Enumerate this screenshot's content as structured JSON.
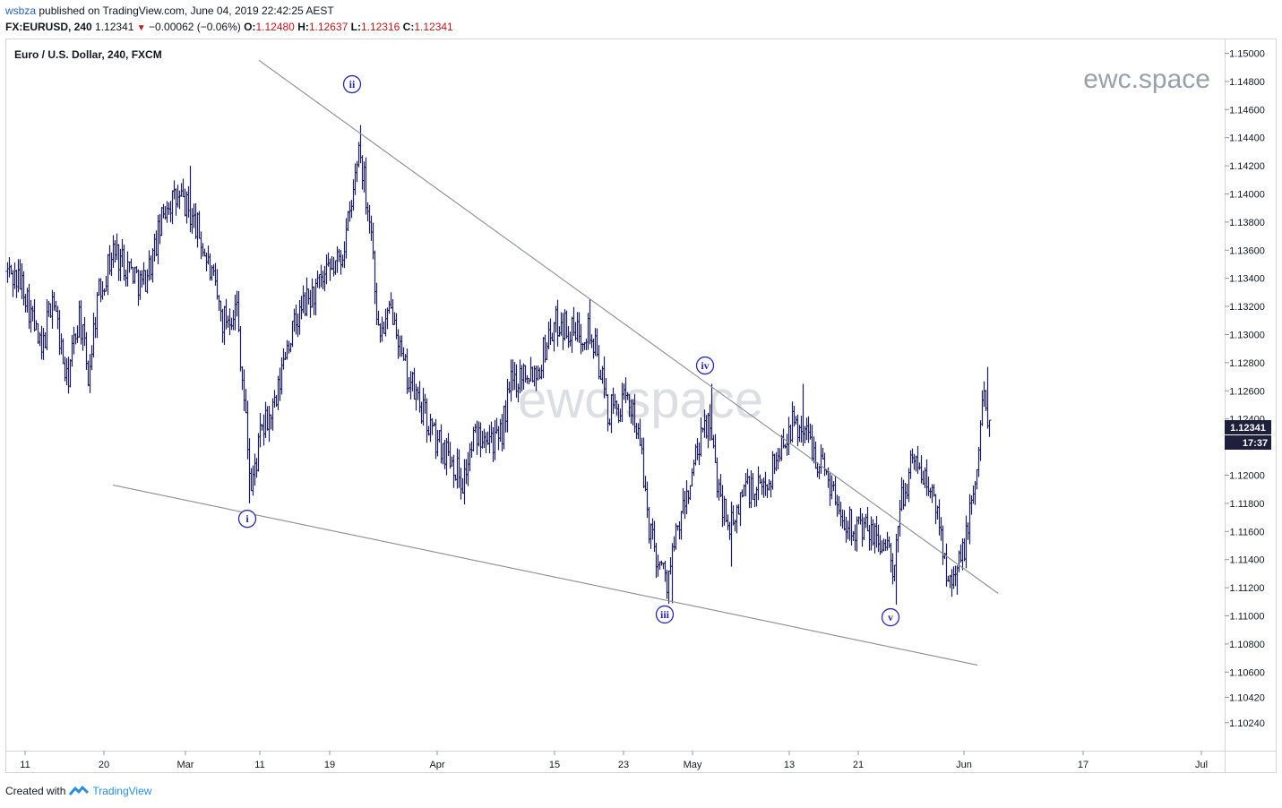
{
  "header": {
    "user": "wsbza",
    "published_text": "published on TradingView.com, June 04, 2019 22:42:25 AEST",
    "symbol": "FX:EURUSD, 240",
    "last": "1.12341",
    "change": "−0.00062 (−0.06%)",
    "o_label": "O:",
    "o_value": "1.12480",
    "h_label": "H:",
    "h_value": "1.12637",
    "l_label": "L:",
    "l_value": "1.12316",
    "c_label": "C:",
    "c_value": "1.12341"
  },
  "footer": {
    "created_with": "Created with",
    "brand": "TradingView"
  },
  "chart_data": {
    "type": "ohlc",
    "title": "Euro / U.S. Dollar, 240, FXCM",
    "watermark_corner": "ewc.space",
    "watermark_center": "ewc.space",
    "current_price_label": "1.12341",
    "countdown_label": "17:37",
    "y_ticks": [
      "1.15000",
      "1.14800",
      "1.14600",
      "1.14400",
      "1.14200",
      "1.14000",
      "1.13800",
      "1.13600",
      "1.13400",
      "1.13200",
      "1.13000",
      "1.12800",
      "1.12600",
      "1.12400",
      "1.12000",
      "1.11800",
      "1.11600",
      "1.11400",
      "1.11200",
      "1.11000",
      "1.10800",
      "1.10600",
      "1.10420",
      "1.10240"
    ],
    "y_range": [
      1.101,
      1.151
    ],
    "x_ticks": [
      {
        "label": "11",
        "bar": 20
      },
      {
        "label": "20",
        "bar": 108
      },
      {
        "label": "Mar",
        "bar": 199
      },
      {
        "label": "11",
        "bar": 282
      },
      {
        "label": "19",
        "bar": 360
      },
      {
        "label": "Apr",
        "bar": 480
      },
      {
        "label": "15",
        "bar": 611
      },
      {
        "label": "23",
        "bar": 688
      },
      {
        "label": "May",
        "bar": 765
      },
      {
        "label": "13",
        "bar": 873
      },
      {
        "label": "21",
        "bar": 950
      },
      {
        "label": "Jun",
        "bar": 1068
      },
      {
        "label": "17",
        "bar": 1201
      },
      {
        "label": "Jul",
        "bar": 1333
      }
    ],
    "wave_labels": [
      {
        "label": "i",
        "bar": 268,
        "price": 1.1169
      },
      {
        "label": "ii",
        "bar": 385,
        "price": 1.1478
      },
      {
        "label": "iii",
        "bar": 734,
        "price": 1.1101
      },
      {
        "label": "iv",
        "bar": 779,
        "price": 1.1278
      },
      {
        "label": "v",
        "bar": 986,
        "price": 1.1099
      }
    ],
    "trendlines": [
      {
        "name": "upper",
        "from": {
          "bar": 281,
          "price": 1.1495
        },
        "to": {
          "bar": 1106,
          "price": 1.1116
        }
      },
      {
        "name": "lower",
        "from": {
          "bar": 118,
          "price": 1.1193
        },
        "to": {
          "bar": 1083,
          "price": 1.1065
        }
      }
    ],
    "swing_path": [
      {
        "bar": 0,
        "price": 1.1345
      },
      {
        "bar": 18,
        "price": 1.1335
      },
      {
        "bar": 38,
        "price": 1.1285
      },
      {
        "bar": 50,
        "price": 1.133
      },
      {
        "bar": 66,
        "price": 1.1265
      },
      {
        "bar": 80,
        "price": 1.1315
      },
      {
        "bar": 90,
        "price": 1.127
      },
      {
        "bar": 100,
        "price": 1.1325
      },
      {
        "bar": 118,
        "price": 1.136
      },
      {
        "bar": 140,
        "price": 1.1345
      },
      {
        "bar": 150,
        "price": 1.1335
      },
      {
        "bar": 162,
        "price": 1.1355
      },
      {
        "bar": 178,
        "price": 1.1395
      },
      {
        "bar": 196,
        "price": 1.1395
      },
      {
        "bar": 212,
        "price": 1.1375
      },
      {
        "bar": 226,
        "price": 1.1345
      },
      {
        "bar": 240,
        "price": 1.131
      },
      {
        "bar": 256,
        "price": 1.132
      },
      {
        "bar": 262,
        "price": 1.127
      },
      {
        "bar": 272,
        "price": 1.119
      },
      {
        "bar": 283,
        "price": 1.123
      },
      {
        "bar": 300,
        "price": 1.125
      },
      {
        "bar": 310,
        "price": 1.129
      },
      {
        "bar": 330,
        "price": 1.132
      },
      {
        "bar": 356,
        "price": 1.134
      },
      {
        "bar": 372,
        "price": 1.1355
      },
      {
        "bar": 384,
        "price": 1.139
      },
      {
        "bar": 392,
        "price": 1.1435
      },
      {
        "bar": 398,
        "price": 1.141
      },
      {
        "bar": 406,
        "price": 1.1375
      },
      {
        "bar": 414,
        "price": 1.13
      },
      {
        "bar": 424,
        "price": 1.131
      },
      {
        "bar": 432,
        "price": 1.132
      },
      {
        "bar": 440,
        "price": 1.128
      },
      {
        "bar": 460,
        "price": 1.125
      },
      {
        "bar": 478,
        "price": 1.1225
      },
      {
        "bar": 494,
        "price": 1.1215
      },
      {
        "bar": 508,
        "price": 1.1195
      },
      {
        "bar": 520,
        "price": 1.1225
      },
      {
        "bar": 534,
        "price": 1.1235
      },
      {
        "bar": 548,
        "price": 1.122
      },
      {
        "bar": 562,
        "price": 1.1265
      },
      {
        "bar": 576,
        "price": 1.1275
      },
      {
        "bar": 592,
        "price": 1.1275
      },
      {
        "bar": 604,
        "price": 1.13
      },
      {
        "bar": 616,
        "price": 1.131
      },
      {
        "bar": 632,
        "price": 1.13
      },
      {
        "bar": 648,
        "price": 1.1305
      },
      {
        "bar": 660,
        "price": 1.128
      },
      {
        "bar": 670,
        "price": 1.1245
      },
      {
        "bar": 686,
        "price": 1.125
      },
      {
        "bar": 698,
        "price": 1.125
      },
      {
        "bar": 706,
        "price": 1.122
      },
      {
        "bar": 716,
        "price": 1.1165
      },
      {
        "bar": 726,
        "price": 1.114
      },
      {
        "bar": 736,
        "price": 1.1125
      },
      {
        "bar": 748,
        "price": 1.116
      },
      {
        "bar": 760,
        "price": 1.119
      },
      {
        "bar": 770,
        "price": 1.1215
      },
      {
        "bar": 782,
        "price": 1.124
      },
      {
        "bar": 790,
        "price": 1.1205
      },
      {
        "bar": 800,
        "price": 1.1175
      },
      {
        "bar": 810,
        "price": 1.116
      },
      {
        "bar": 822,
        "price": 1.1195
      },
      {
        "bar": 834,
        "price": 1.1185
      },
      {
        "bar": 848,
        "price": 1.1195
      },
      {
        "bar": 860,
        "price": 1.1215
      },
      {
        "bar": 872,
        "price": 1.1235
      },
      {
        "bar": 886,
        "price": 1.1235
      },
      {
        "bar": 896,
        "price": 1.1225
      },
      {
        "bar": 906,
        "price": 1.121
      },
      {
        "bar": 916,
        "price": 1.12
      },
      {
        "bar": 928,
        "price": 1.1175
      },
      {
        "bar": 944,
        "price": 1.1165
      },
      {
        "bar": 958,
        "price": 1.116
      },
      {
        "bar": 970,
        "price": 1.1155
      },
      {
        "bar": 982,
        "price": 1.115
      },
      {
        "bar": 990,
        "price": 1.1125
      },
      {
        "bar": 996,
        "price": 1.118
      },
      {
        "bar": 1008,
        "price": 1.1205
      },
      {
        "bar": 1016,
        "price": 1.121
      },
      {
        "bar": 1028,
        "price": 1.119
      },
      {
        "bar": 1038,
        "price": 1.1175
      },
      {
        "bar": 1048,
        "price": 1.1135
      },
      {
        "bar": 1060,
        "price": 1.113
      },
      {
        "bar": 1068,
        "price": 1.115
      },
      {
        "bar": 1078,
        "price": 1.1185
      },
      {
        "bar": 1084,
        "price": 1.1215
      },
      {
        "bar": 1090,
        "price": 1.1265
      },
      {
        "bar": 1094,
        "price": 1.1245
      },
      {
        "bar": 1096,
        "price": 1.1234
      }
    ],
    "spikes": [
      {
        "bar": 203,
        "price": 1.142
      },
      {
        "bar": 393,
        "price": 1.1449
      },
      {
        "bar": 270,
        "price": 1.118
      },
      {
        "bar": 741,
        "price": 1.1109
      },
      {
        "bar": 785,
        "price": 1.1265
      },
      {
        "bar": 992,
        "price": 1.1108
      },
      {
        "bar": 1093,
        "price": 1.1277
      },
      {
        "bar": 650,
        "price": 1.1325
      },
      {
        "bar": 888,
        "price": 1.1265
      },
      {
        "bar": 808,
        "price": 1.1135
      },
      {
        "bar": 1060,
        "price": 1.1115
      }
    ]
  }
}
